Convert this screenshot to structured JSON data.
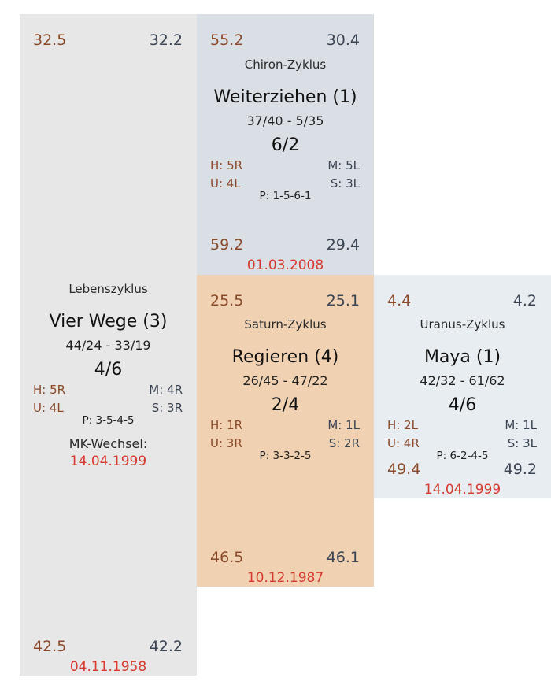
{
  "colors": {
    "leben_bg": "#e7e7e7",
    "chiron_bg": "#dadfe6",
    "saturn_bg": "#f0d2b3",
    "uranus_bg": "#e8edf2",
    "brown_text": "#8a4a2a",
    "date_red": "#d63a2e"
  },
  "leben": {
    "top_left": "32.5",
    "top_right": "32.2",
    "cycle_label": "Lebenszyklus",
    "title": "Vier Wege (3)",
    "numbers": "44/24 - 33/19",
    "ratio": "4/6",
    "h": "H: 5R",
    "m": "M: 4R",
    "u": "U: 4L",
    "s": "S: 3R",
    "p": "P: 3-5-4-5",
    "change_label": "MK-Wechsel:",
    "change_date": "14.04.1999",
    "bottom_left": "42.5",
    "bottom_right": "42.2",
    "date": "04.11.1958"
  },
  "chiron": {
    "top_left": "55.2",
    "top_right": "30.4",
    "cycle_label": "Chiron-Zyklus",
    "title": "Weiterziehen (1)",
    "numbers": "37/40 - 5/35",
    "ratio": "6/2",
    "h": "H: 5R",
    "m": "M: 5L",
    "u": "U: 4L",
    "s": "S: 3L",
    "p": "P: 1-5-6-1",
    "bottom_left": "59.2",
    "bottom_right": "29.4",
    "date": "01.03.2008"
  },
  "saturn": {
    "top_left": "25.5",
    "top_right": "25.1",
    "cycle_label": "Saturn-Zyklus",
    "title": "Regieren (4)",
    "numbers": "26/45 - 47/22",
    "ratio": "2/4",
    "h": "H: 1R",
    "m": "M: 1L",
    "u": "U: 3R",
    "s": "S: 2R",
    "p": "P: 3-3-2-5",
    "bottom_left": "46.5",
    "bottom_right": "46.1",
    "date": "10.12.1987"
  },
  "uranus": {
    "top_left": "4.4",
    "top_right": "4.2",
    "cycle_label": "Uranus-Zyklus",
    "title": "Maya (1)",
    "numbers": "42/32 - 61/62",
    "ratio": "4/6",
    "h": "H: 2L",
    "m": "M: 1L",
    "u": "U: 4R",
    "s": "S: 3L",
    "p": "P: 6-2-4-5",
    "bottom_left": "49.4",
    "bottom_right": "49.2",
    "date": "14.04.1999"
  }
}
